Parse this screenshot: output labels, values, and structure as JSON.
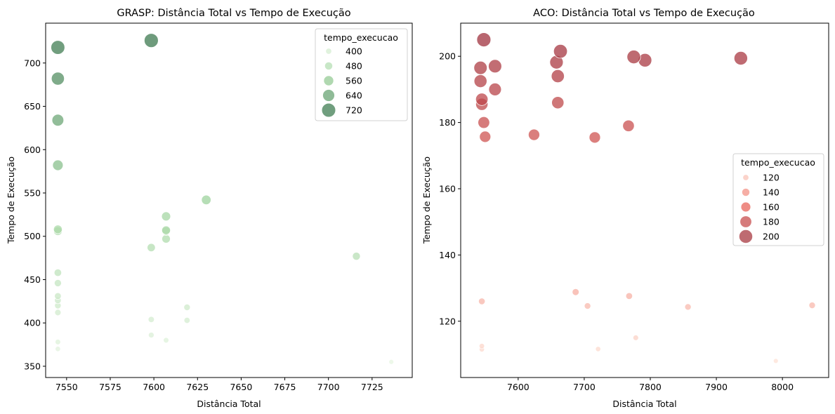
{
  "chart_data": [
    {
      "type": "scatter",
      "title": "GRASP: Distância Total vs Tempo de Execução",
      "xlabel": "Distância Total",
      "ylabel": "Tempo de Execução",
      "xlim": [
        7538,
        7748
      ],
      "ylim": [
        337,
        746
      ],
      "xticks": [
        7550,
        7575,
        7600,
        7625,
        7650,
        7675,
        7700,
        7725
      ],
      "yticks": [
        350,
        400,
        450,
        500,
        550,
        600,
        650,
        700
      ],
      "grid": false,
      "legend": {
        "title": "tempo_execucao",
        "placement": "upper right",
        "entries": [
          {
            "label": "400",
            "value": 400
          },
          {
            "label": "480",
            "value": 480
          },
          {
            "label": "560",
            "value": 560
          },
          {
            "label": "640",
            "value": 640
          },
          {
            "label": "720",
            "value": 720
          }
        ]
      },
      "colors": {
        "low": "#e7f5e2",
        "mid": "#9fd49e",
        "high": "#3d7a50"
      },
      "size_color_range": [
        355,
        726
      ],
      "points": [
        {
          "x": 7545,
          "y": 718
        },
        {
          "x": 7545,
          "y": 682
        },
        {
          "x": 7545,
          "y": 634
        },
        {
          "x": 7545,
          "y": 582
        },
        {
          "x": 7545,
          "y": 508
        },
        {
          "x": 7545,
          "y": 506
        },
        {
          "x": 7545,
          "y": 458
        },
        {
          "x": 7545,
          "y": 446
        },
        {
          "x": 7545,
          "y": 431
        },
        {
          "x": 7545,
          "y": 426
        },
        {
          "x": 7545,
          "y": 420
        },
        {
          "x": 7545,
          "y": 412
        },
        {
          "x": 7545,
          "y": 378
        },
        {
          "x": 7545,
          "y": 370
        },
        {
          "x": 7598.5,
          "y": 726
        },
        {
          "x": 7598.5,
          "y": 487
        },
        {
          "x": 7598.5,
          "y": 404
        },
        {
          "x": 7598.5,
          "y": 386
        },
        {
          "x": 7607,
          "y": 523
        },
        {
          "x": 7607,
          "y": 507
        },
        {
          "x": 7607,
          "y": 506
        },
        {
          "x": 7607,
          "y": 497
        },
        {
          "x": 7607,
          "y": 380
        },
        {
          "x": 7619,
          "y": 418
        },
        {
          "x": 7619,
          "y": 403
        },
        {
          "x": 7630,
          "y": 542
        },
        {
          "x": 7716,
          "y": 477
        },
        {
          "x": 7736,
          "y": 355
        }
      ]
    },
    {
      "type": "scatter",
      "title": "ACO: Distância Total vs Tempo de Execução",
      "xlabel": "Distância Total",
      "ylabel": "Tempo de Execução",
      "xlim": [
        7513,
        8070
      ],
      "ylim": [
        103,
        210
      ],
      "xticks": [
        7600,
        7700,
        7800,
        7900,
        8000
      ],
      "yticks": [
        120,
        140,
        160,
        180,
        200
      ],
      "grid": false,
      "legend": {
        "title": "tempo_execucao",
        "placement": "center right",
        "entries": [
          {
            "label": "120",
            "value": 120
          },
          {
            "label": "140",
            "value": 140
          },
          {
            "label": "160",
            "value": 160
          },
          {
            "label": "180",
            "value": 180
          },
          {
            "label": "200",
            "value": 200
          }
        ]
      },
      "colors": {
        "low": "#fde2d6",
        "mid": "#ee6a5e",
        "high": "#a0333f"
      },
      "size_color_range": [
        108,
        205
      ],
      "points": [
        {
          "x": 7548,
          "y": 205
        },
        {
          "x": 7543,
          "y": 196.5
        },
        {
          "x": 7565,
          "y": 197
        },
        {
          "x": 7543,
          "y": 192.5
        },
        {
          "x": 7565,
          "y": 190
        },
        {
          "x": 7545,
          "y": 187
        },
        {
          "x": 7545,
          "y": 185.5
        },
        {
          "x": 7548,
          "y": 180
        },
        {
          "x": 7550,
          "y": 175.7
        },
        {
          "x": 7545,
          "y": 126
        },
        {
          "x": 7545,
          "y": 112.5
        },
        {
          "x": 7545,
          "y": 111.5
        },
        {
          "x": 7624,
          "y": 176.3
        },
        {
          "x": 7664,
          "y": 201.5
        },
        {
          "x": 7658,
          "y": 198.2
        },
        {
          "x": 7660,
          "y": 194
        },
        {
          "x": 7660,
          "y": 186
        },
        {
          "x": 7687,
          "y": 128.8
        },
        {
          "x": 7705,
          "y": 124.6
        },
        {
          "x": 7716,
          "y": 175.5
        },
        {
          "x": 7721,
          "y": 111.6
        },
        {
          "x": 7767,
          "y": 179
        },
        {
          "x": 7768,
          "y": 127.6
        },
        {
          "x": 7778,
          "y": 115
        },
        {
          "x": 7775,
          "y": 199.8
        },
        {
          "x": 7792,
          "y": 198.8
        },
        {
          "x": 7857,
          "y": 124.3
        },
        {
          "x": 7937,
          "y": 199.4
        },
        {
          "x": 7990,
          "y": 108
        },
        {
          "x": 8045,
          "y": 124.8
        }
      ]
    }
  ]
}
